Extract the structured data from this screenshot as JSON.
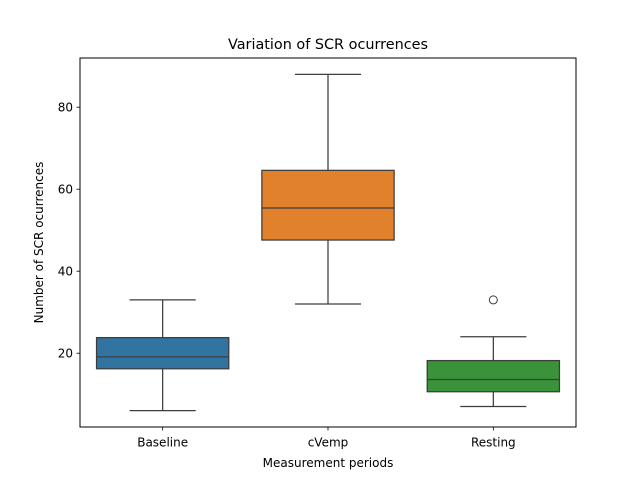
{
  "chart_data": {
    "type": "box",
    "title": "Variation of SCR ocurrences",
    "xlabel": "Measurement periods",
    "ylabel": "Number of SCR ocurrences",
    "ylim": [
      2,
      92
    ],
    "yticks": [
      20,
      40,
      60,
      80
    ],
    "grid": false,
    "categories": [
      "Baseline",
      "cVemp",
      "Resting"
    ],
    "colors": [
      "#3274a1",
      "#e1812c",
      "#3a923a"
    ],
    "boxes": [
      {
        "category": "Baseline",
        "whisker_low": 6,
        "q1": 16.2,
        "median": 19.1,
        "q3": 23.8,
        "whisker_high": 33,
        "outliers": []
      },
      {
        "category": "cVemp",
        "whisker_low": 32,
        "q1": 47.6,
        "median": 55.4,
        "q3": 64.6,
        "whisker_high": 88,
        "outliers": []
      },
      {
        "category": "Resting",
        "whisker_low": 7,
        "q1": 10.6,
        "median": 13.6,
        "q3": 18.2,
        "whisker_high": 24,
        "outliers": [
          33
        ]
      }
    ]
  }
}
